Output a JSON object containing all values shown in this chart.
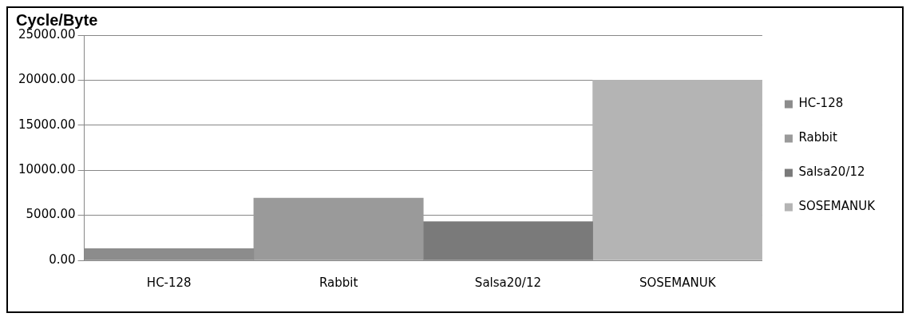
{
  "chart_data": {
    "type": "bar",
    "title": "Cycle/Byte",
    "categories": [
      "HC-128",
      "Rabbit",
      "Salsa20/12",
      "SOSEMANUK"
    ],
    "series": [
      {
        "name": "HC-128",
        "color": "#8c8c8c",
        "values": [
          1300,
          null,
          null,
          null
        ]
      },
      {
        "name": "Rabbit",
        "color": "#9a9a9a",
        "values": [
          null,
          6900,
          null,
          null
        ]
      },
      {
        "name": "Salsa20/12",
        "color": "#7a7a7a",
        "values": [
          null,
          null,
          4300,
          null
        ]
      },
      {
        "name": "SOSEMANUK",
        "color": "#b4b4b4",
        "values": [
          null,
          null,
          null,
          20000
        ]
      }
    ],
    "ylim": [
      0,
      25000
    ],
    "yticks": [
      {
        "value": 0,
        "label": "0.00"
      },
      {
        "value": 5000,
        "label": "5000.00"
      },
      {
        "value": 10000,
        "label": "10000.00"
      },
      {
        "value": 15000,
        "label": "15000.00"
      },
      {
        "value": 20000,
        "label": "20000.00"
      },
      {
        "value": 25000,
        "label": "25000.00"
      }
    ],
    "grid": "y",
    "legend": "right"
  }
}
